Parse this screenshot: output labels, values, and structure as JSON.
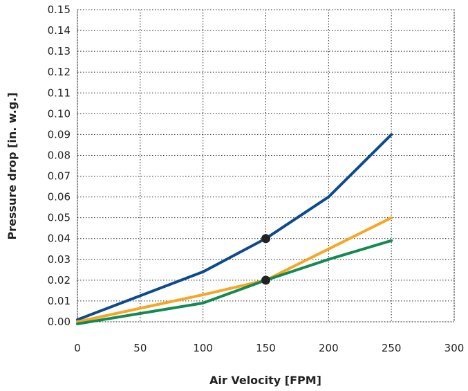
{
  "chart_data": {
    "type": "line",
    "xlabel": "Air Velocity [FPM]",
    "ylabel": "Pressure drop [in. w.g.]",
    "xlim": [
      0,
      300
    ],
    "ylim": [
      0,
      0.15
    ],
    "x_ticks": [
      "0",
      "50",
      "100",
      "150",
      "200",
      "250",
      "300"
    ],
    "y_ticks": [
      "0.00",
      "0.01",
      "0.02",
      "0.03",
      "0.04",
      "0.05",
      "0.06",
      "0.07",
      "0.08",
      "0.09",
      "0.10",
      "0.11",
      "0.12",
      "0.13",
      "0.14",
      "0.15"
    ],
    "grid": true,
    "legend": "none",
    "series": [
      {
        "color": "#0d4a8b",
        "x": [
          0,
          100,
          150,
          200,
          250
        ],
        "y": [
          0.001,
          0.024,
          0.04,
          0.06,
          0.09
        ]
      },
      {
        "color": "#f5a623",
        "x": [
          0,
          100,
          150,
          200,
          250
        ],
        "y": [
          0.0,
          0.013,
          0.02,
          0.035,
          0.05
        ]
      },
      {
        "color": "#138a54",
        "x": [
          0,
          100,
          150,
          200,
          250
        ],
        "y": [
          -0.001,
          0.009,
          0.02,
          0.03,
          0.039
        ]
      }
    ],
    "markers": [
      {
        "x": 150,
        "y": 0.04,
        "color": "#222222"
      },
      {
        "x": 150,
        "y": 0.02,
        "color": "#222222"
      }
    ]
  }
}
